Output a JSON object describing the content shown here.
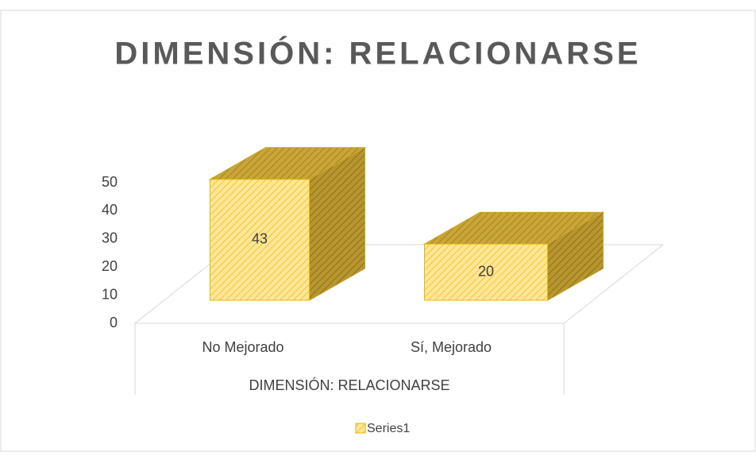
{
  "chart_data": {
    "type": "bar3d",
    "title": "DIMENSIÓN: RELACIONARSE",
    "categories": [
      "No Mejorado",
      "Sí, Mejorado"
    ],
    "x_axis_label": "DIMENSIÓN: RELACIONARSE",
    "series": [
      {
        "name": "Series1",
        "color": "#ffd966",
        "values": [
          43,
          20
        ]
      }
    ],
    "ylim": [
      0,
      50
    ],
    "yticks": [
      0,
      10,
      20,
      30,
      40,
      50
    ],
    "legend": "bottom"
  }
}
